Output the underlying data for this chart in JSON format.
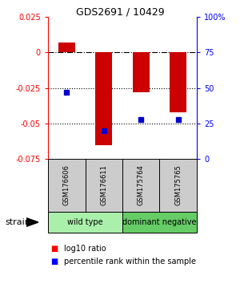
{
  "title": "GDS2691 / 10429",
  "samples": [
    "GSM176606",
    "GSM176611",
    "GSM175764",
    "GSM175765"
  ],
  "log10_ratio": [
    0.007,
    -0.065,
    -0.028,
    -0.042
  ],
  "percentile_rank": [
    47,
    20,
    28,
    28
  ],
  "groups": [
    {
      "label": "wild type",
      "samples": [
        0,
        1
      ],
      "color": "#aaf0aa"
    },
    {
      "label": "dominant negative",
      "samples": [
        2,
        3
      ],
      "color": "#66cc66"
    }
  ],
  "ylim_left": [
    -0.075,
    0.025
  ],
  "ylim_right": [
    0,
    100
  ],
  "left_ticks": [
    0.025,
    0,
    -0.025,
    -0.05,
    -0.075
  ],
  "left_tick_labels": [
    "0.025",
    "0",
    "-0.025",
    "-0.05",
    "-0.075"
  ],
  "right_ticks": [
    100,
    75,
    50,
    25,
    0
  ],
  "right_tick_labels": [
    "100%",
    "75",
    "50",
    "25",
    "0"
  ],
  "bar_color": "#cc0000",
  "dot_color": "#0000cc",
  "dotted_lines": [
    -0.025,
    -0.05
  ],
  "dashdot_line": 0,
  "strain_label": "strain",
  "legend_bar": "log10 ratio",
  "legend_dot": "percentile rank within the sample",
  "sample_box_color": "#cccccc",
  "fig_width": 3.0,
  "fig_height": 3.54
}
